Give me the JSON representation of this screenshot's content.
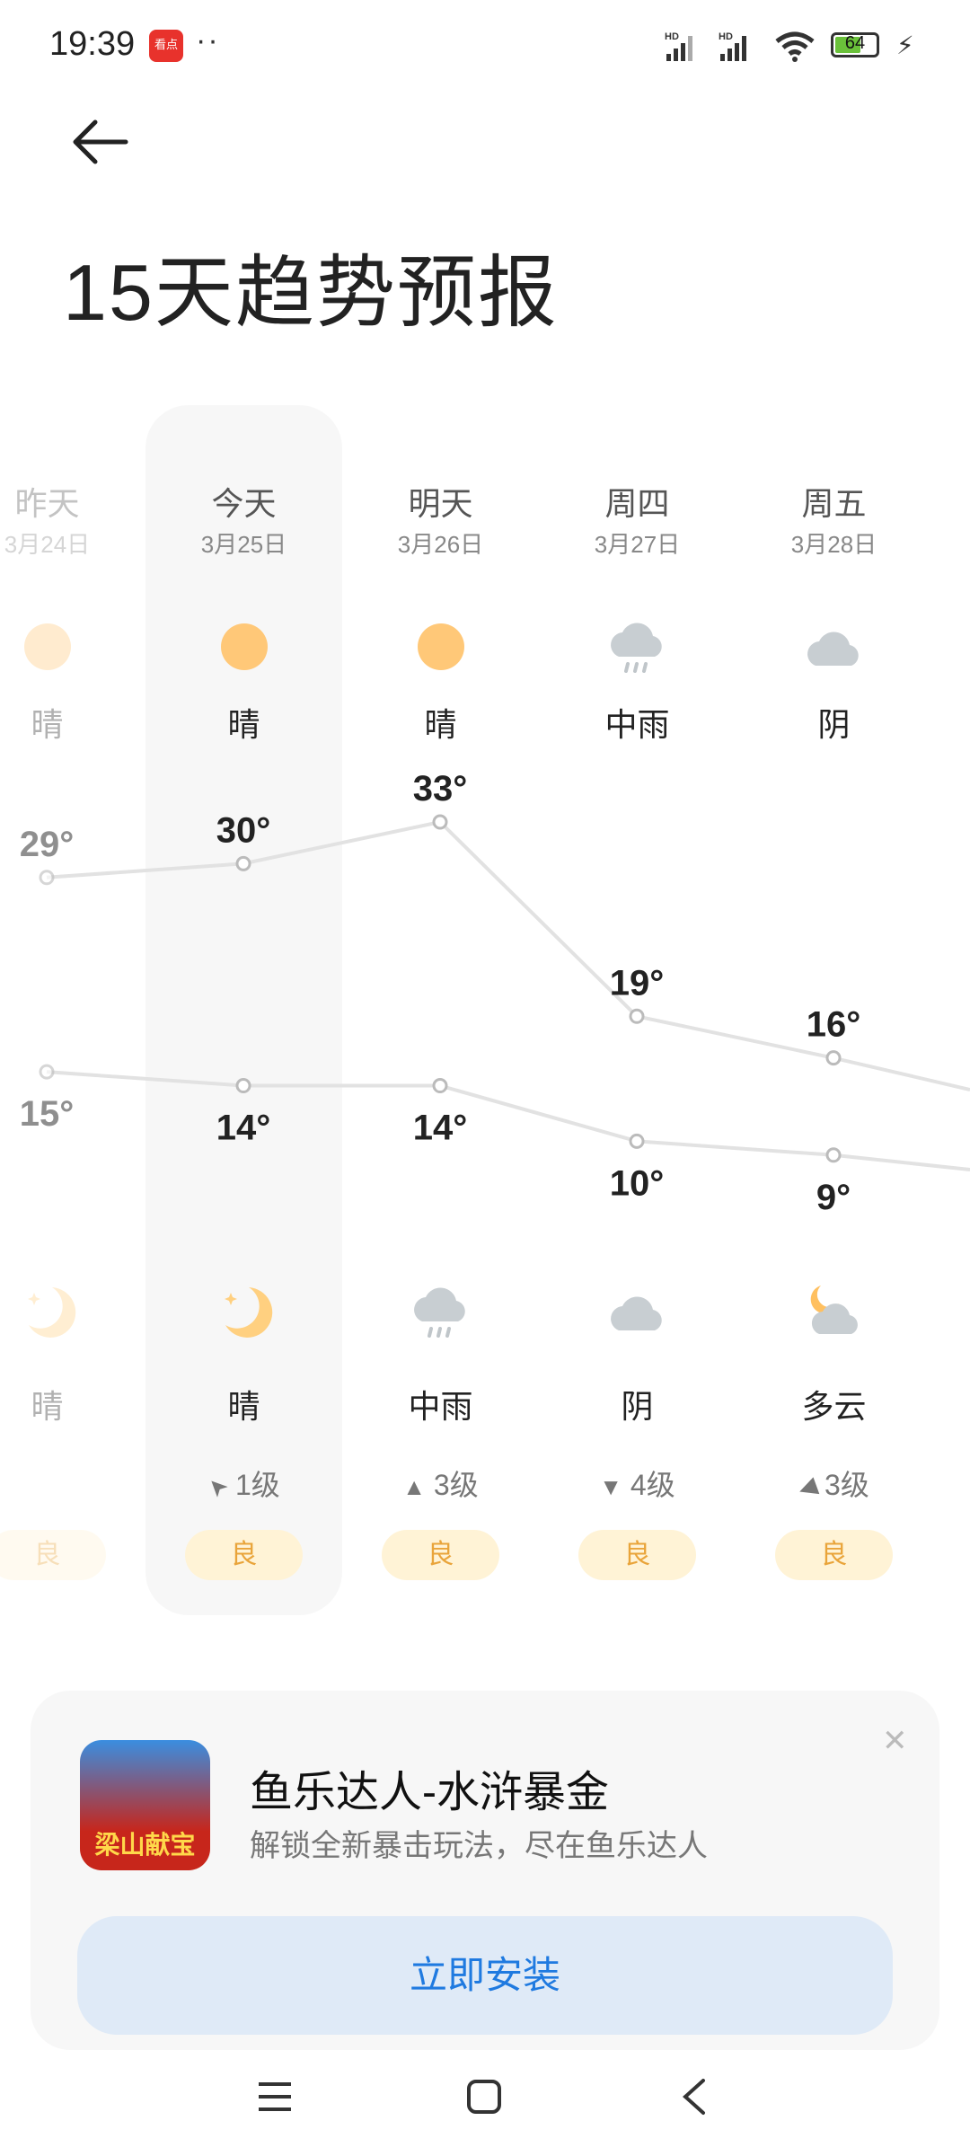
{
  "status_bar": {
    "time": "19:39",
    "app_badge": "看点",
    "battery": 64,
    "battery_label": "64",
    "battery_color": "#6ac13a",
    "icons": [
      "hd-signal-icon",
      "hd-signal-icon",
      "wifi-icon",
      "battery-icon",
      "charging-icon"
    ]
  },
  "header": {
    "back_icon": "arrow-left-icon",
    "title": "15天趋势预报"
  },
  "forecast": {
    "days": [
      {
        "name": "昨天",
        "date": "3月24日",
        "day_icon": "sun-icon",
        "day_cond": "晴",
        "high": "29°",
        "night_icon": "moon-icon",
        "night_cond": "晴",
        "low": "15°",
        "wind": "",
        "aqi": "良",
        "past": true
      },
      {
        "name": "今天",
        "date": "3月25日",
        "day_icon": "sun-icon",
        "day_cond": "晴",
        "high": "30°",
        "night_icon": "moon-icon",
        "night_cond": "晴",
        "low": "14°",
        "wind": "1级",
        "wind_dir": "northwest",
        "aqi": "良",
        "selected": true
      },
      {
        "name": "明天",
        "date": "3月26日",
        "day_icon": "sun-icon",
        "day_cond": "晴",
        "high": "33°",
        "night_icon": "rain-icon",
        "night_cond": "中雨",
        "low": "14°",
        "wind": "3级",
        "wind_dir": "north",
        "aqi": "良"
      },
      {
        "name": "周四",
        "date": "3月27日",
        "day_icon": "rain-icon",
        "day_cond": "中雨",
        "high": "19°",
        "night_icon": "cloud-icon",
        "night_cond": "阴",
        "low": "10°",
        "wind": "4级",
        "wind_dir": "south",
        "aqi": "良"
      },
      {
        "name": "周五",
        "date": "3月28日",
        "day_icon": "cloud-icon",
        "day_cond": "阴",
        "high": "16°",
        "night_icon": "partly-cloudy-night-icon",
        "night_cond": "多云",
        "low": "9°",
        "wind": "3级",
        "wind_dir": "west",
        "aqi": "良"
      }
    ]
  },
  "chart_data": {
    "type": "line",
    "categories": [
      "昨天",
      "今天",
      "明天",
      "周四",
      "周五"
    ],
    "series": [
      {
        "values": [
          29,
          30,
          33,
          19,
          16
        ]
      },
      {
        "values": [
          15,
          14,
          14,
          10,
          9
        ]
      }
    ],
    "unit": "°"
  },
  "ad": {
    "title": "鱼乐达人-水浒暴金",
    "subtitle": "解锁全新暴击玩法，尽在鱼乐达人",
    "icon_text": "梁山献宝",
    "button": "立即安装",
    "close_icon": "close-icon"
  },
  "nav": {
    "icons": [
      "menu-icon",
      "home-icon",
      "back-icon"
    ]
  }
}
